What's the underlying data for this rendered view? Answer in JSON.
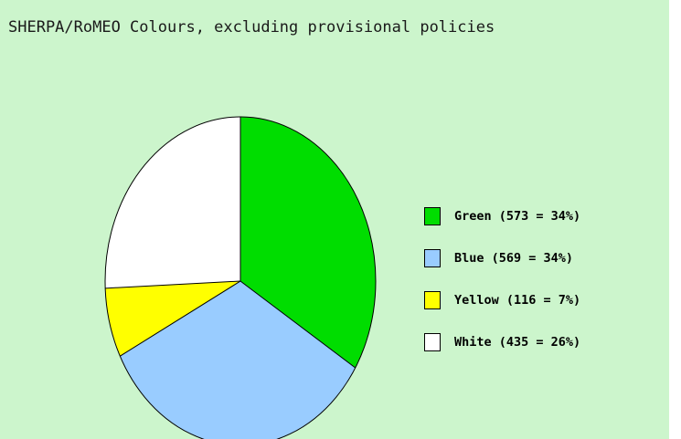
{
  "chart_data": {
    "type": "pie",
    "title": "SHERPA/RoMEO Colours, excluding provisional policies",
    "slices": [
      {
        "label": "Green (573 = 34%)",
        "name": "Green",
        "value": 573,
        "percent": 34,
        "color": "#00dd00"
      },
      {
        "label": "Blue (569 = 34%)",
        "name": "Blue",
        "value": 569,
        "percent": 34,
        "color": "#99ccff"
      },
      {
        "label": "Yellow (116 = 7%)",
        "name": "Yellow",
        "value": 116,
        "percent": 7,
        "color": "#ffff00"
      },
      {
        "label": "White (435 = 26%)",
        "name": "White",
        "value": 435,
        "percent": 26,
        "color": "#ffffff"
      }
    ],
    "start_angle": "12 o'clock",
    "direction": "clockwise",
    "legend_position": "right",
    "background_color": "#ccf5cc"
  }
}
